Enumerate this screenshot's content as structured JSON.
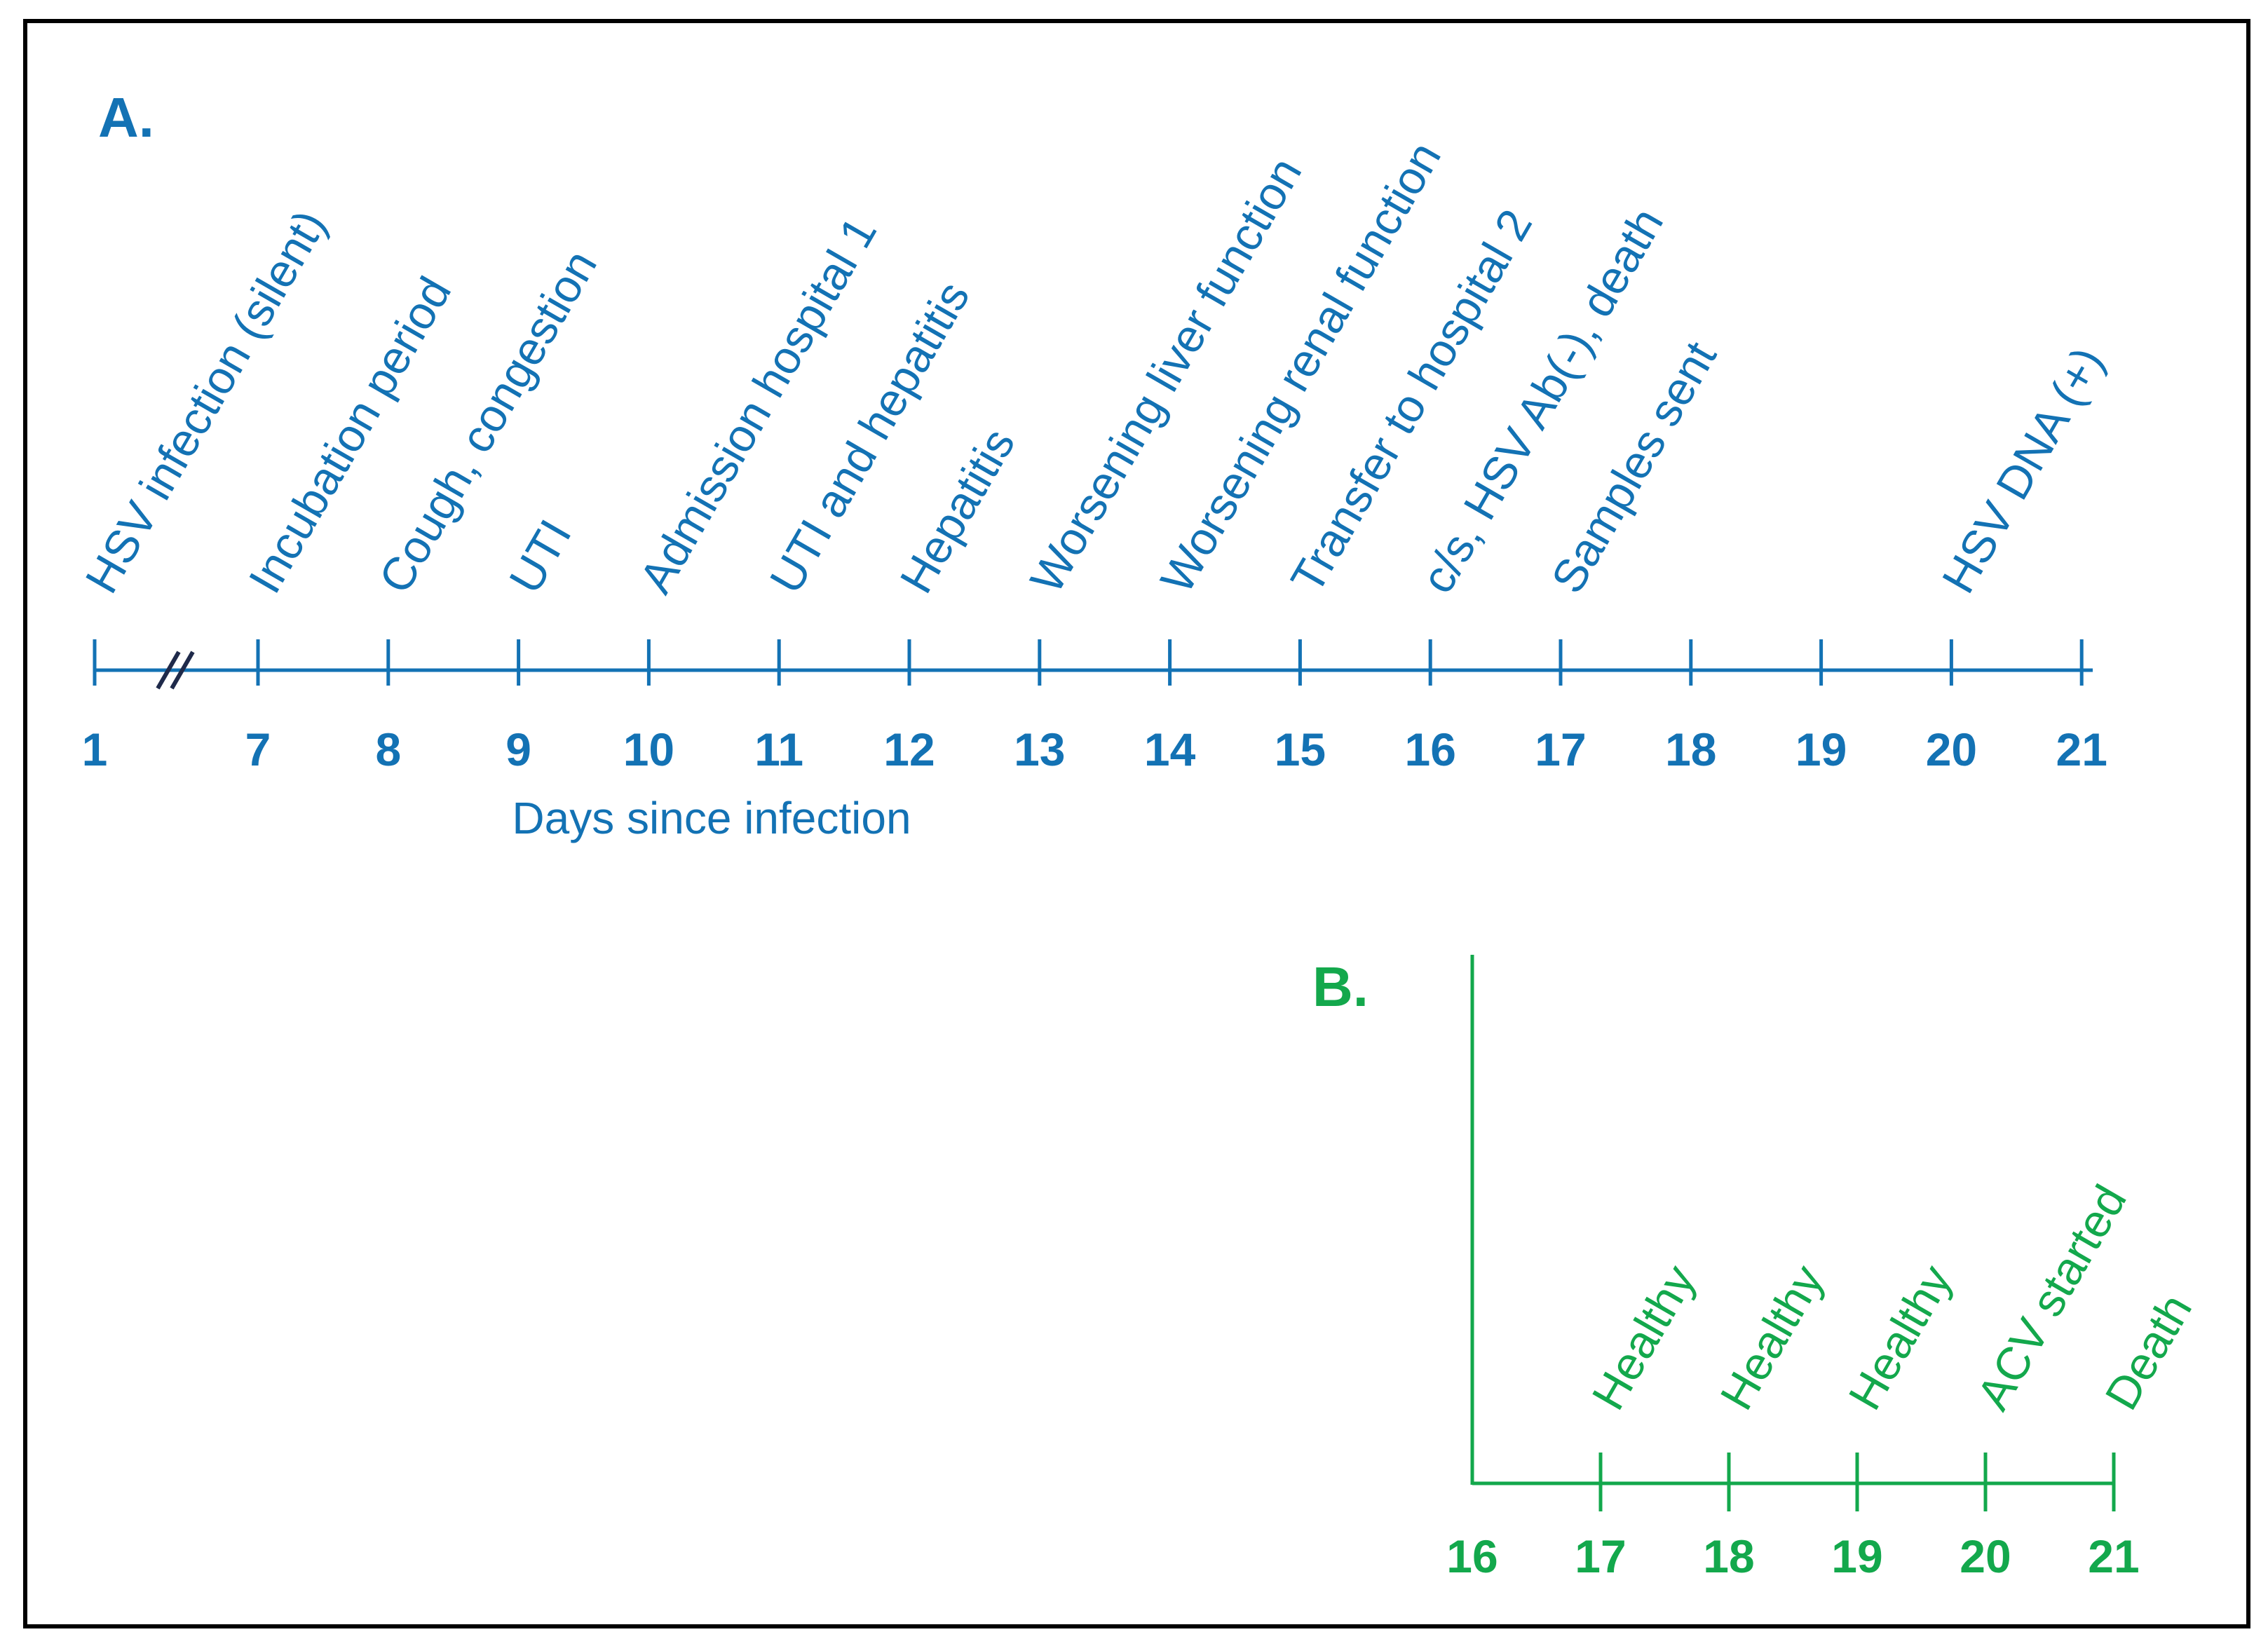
{
  "colors": {
    "panel_a": "#1372B4",
    "panel_b": "#13A84C",
    "break_mark": "#1F2A4A",
    "frame": "#000000"
  },
  "panel_a": {
    "label": "A.",
    "axis_title": "Days since infection",
    "ticks": [
      {
        "day": 1,
        "label": "1",
        "event": "HSV infection (silent)"
      },
      {
        "day": 7,
        "label": "7",
        "event": "Incubation period"
      },
      {
        "day": 8,
        "label": "8",
        "event": "Cough, congestion"
      },
      {
        "day": 9,
        "label": "9",
        "event": "UTI"
      },
      {
        "day": 10,
        "label": "10",
        "event": "Admission hospital 1"
      },
      {
        "day": 11,
        "label": "11",
        "event": "UTI and hepatitis"
      },
      {
        "day": 12,
        "label": "12",
        "event": "Hepatitis"
      },
      {
        "day": 13,
        "label": "13",
        "event": "Worsening liver function"
      },
      {
        "day": 14,
        "label": "14",
        "event": "Worsening renal function"
      },
      {
        "day": 15,
        "label": "15",
        "event": "Transfer to hospital 2"
      },
      {
        "day": 16,
        "label": "16",
        "event": "c/s, HSV Ab(-), death"
      },
      {
        "day": 17,
        "label": "17",
        "event": "Samples sent"
      },
      {
        "day": 18,
        "label": "18",
        "event": ""
      },
      {
        "day": 19,
        "label": "19",
        "event": ""
      },
      {
        "day": 20,
        "label": "20",
        "event": "HSV DNA (+)"
      },
      {
        "day": 21,
        "label": "21",
        "event": ""
      }
    ]
  },
  "panel_b": {
    "label": "B.",
    "ticks": [
      {
        "day": 16,
        "label": "16",
        "event": ""
      },
      {
        "day": 17,
        "label": "17",
        "event": "Healthy"
      },
      {
        "day": 18,
        "label": "18",
        "event": "Healthy"
      },
      {
        "day": 19,
        "label": "19",
        "event": "Healthy"
      },
      {
        "day": 20,
        "label": "20",
        "event": "ACV started"
      },
      {
        "day": 21,
        "label": "21",
        "event": "Death"
      }
    ]
  }
}
